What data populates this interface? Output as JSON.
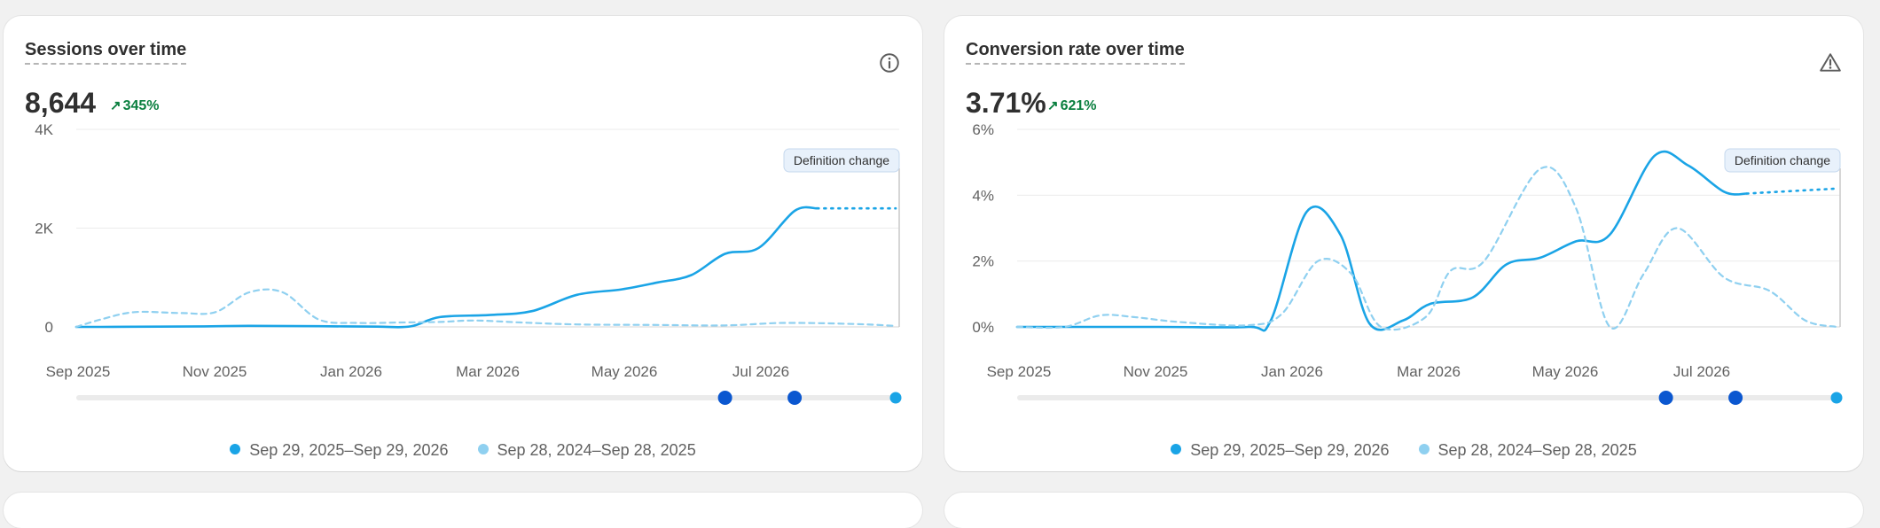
{
  "colors": {
    "current": "#1aa4e6",
    "previous": "#8fd0f0",
    "handle": "#0b57d0",
    "positive": "#0a7f3f"
  },
  "cards": [
    {
      "id": "sessions",
      "title": "Sessions over time",
      "value": "8,644",
      "change": "345%",
      "change_icon": "arrow-up-right-icon",
      "corner_icon": "info-icon",
      "badge": "Definition change",
      "legend": [
        "Sep 29, 2025–Sep 29, 2026",
        "Sep 28, 2024–Sep 28, 2025"
      ],
      "chart_data": {
        "type": "line",
        "title": "Sessions over time",
        "x_ticks": [
          "Sep 2025",
          "Nov 2025",
          "Jan 2026",
          "Mar 2026",
          "May 2026",
          "Jul 2026"
        ],
        "y_ticks": [
          "0",
          "2K",
          "4K"
        ],
        "ylim": [
          0,
          4000
        ],
        "grid": true,
        "series": [
          {
            "name": "Sep 29, 2025–Sep 29, 2026",
            "points": [
              [
                "2025-09-29",
                0
              ],
              [
                "2025-10-10",
                0
              ],
              [
                "2025-11-05",
                5
              ],
              [
                "2025-11-25",
                10
              ],
              [
                "2025-12-10",
                20
              ],
              [
                "2025-12-25",
                20
              ],
              [
                "2026-01-15",
                15
              ],
              [
                "2026-02-10",
                5
              ],
              [
                "2026-02-25",
                10
              ],
              [
                "2026-03-10",
                200
              ],
              [
                "2026-04-01",
                240
              ],
              [
                "2026-04-20",
                320
              ],
              [
                "2026-05-10",
                650
              ],
              [
                "2026-05-30",
                760
              ],
              [
                "2026-06-15",
                900
              ],
              [
                "2026-06-30",
                1050
              ],
              [
                "2026-07-15",
                1480
              ],
              [
                "2026-07-30",
                1600
              ],
              [
                "2026-08-15",
                2350
              ],
              [
                "2026-08-25",
                2400
              ]
            ],
            "projected": [
              [
                "2026-08-25",
                2400
              ],
              [
                "2026-09-29",
                2400
              ]
            ]
          },
          {
            "name": "Sep 28, 2024–Sep 28, 2025",
            "dashed": true,
            "points": [
              [
                "2025-09-29",
                0
              ],
              [
                "2025-10-10",
                150
              ],
              [
                "2025-10-25",
                300
              ],
              [
                "2025-11-15",
                280
              ],
              [
                "2025-11-30",
                300
              ],
              [
                "2025-12-15",
                700
              ],
              [
                "2025-12-30",
                700
              ],
              [
                "2026-01-15",
                150
              ],
              [
                "2026-02-01",
                80
              ],
              [
                "2026-02-20",
                90
              ],
              [
                "2026-03-10",
                100
              ],
              [
                "2026-03-25",
                130
              ],
              [
                "2026-04-15",
                90
              ],
              [
                "2026-05-10",
                50
              ],
              [
                "2026-06-15",
                40
              ],
              [
                "2026-07-15",
                30
              ],
              [
                "2026-08-10",
                80
              ],
              [
                "2026-09-10",
                60
              ],
              [
                "2026-09-29",
                20
              ]
            ]
          }
        ],
        "marker_dates": [
          "2026-07-15",
          "2026-08-15",
          "2026-09-29"
        ]
      }
    },
    {
      "id": "conversion",
      "title": "Conversion rate over time",
      "value": "3.71%",
      "change": "621%",
      "change_icon": "arrow-up-right-icon",
      "corner_icon": "alert-triangle-icon",
      "badge": "Definition change",
      "legend": [
        "Sep 29, 2025–Sep 29, 2026",
        "Sep 28, 2024–Sep 28, 2025"
      ],
      "chart_data": {
        "type": "line",
        "title": "Conversion rate over time",
        "x_ticks": [
          "Sep 2025",
          "Nov 2025",
          "Jan 2026",
          "Mar 2026",
          "May 2026",
          "Jul 2026"
        ],
        "y_ticks": [
          "0%",
          "2%",
          "4%",
          "6%"
        ],
        "ylim": [
          0,
          6
        ],
        "grid": true,
        "series": [
          {
            "name": "Sep 29, 2025–Sep 29, 2026",
            "points": [
              [
                "2025-09-29",
                0
              ],
              [
                "2025-12-01",
                0
              ],
              [
                "2026-01-10",
                0
              ],
              [
                "2026-01-20",
                0.2
              ],
              [
                "2026-02-05",
                3.5
              ],
              [
                "2026-02-20",
                2.8
              ],
              [
                "2026-03-05",
                0.1
              ],
              [
                "2026-03-20",
                0.2
              ],
              [
                "2026-04-01",
                0.7
              ],
              [
                "2026-04-20",
                0.9
              ],
              [
                "2026-05-05",
                1.9
              ],
              [
                "2026-05-20",
                2.1
              ],
              [
                "2026-06-05",
                2.6
              ],
              [
                "2026-06-20",
                2.8
              ],
              [
                "2026-07-10",
                5.2
              ],
              [
                "2026-07-25",
                4.9
              ],
              [
                "2026-08-10",
                4.1
              ],
              [
                "2026-08-20",
                4.05
              ]
            ],
            "projected": [
              [
                "2026-08-20",
                4.05
              ],
              [
                "2026-09-29",
                4.2
              ]
            ]
          },
          {
            "name": "Sep 28, 2024–Sep 28, 2025",
            "dashed": true,
            "points": [
              [
                "2025-09-29",
                0
              ],
              [
                "2025-10-20",
                0
              ],
              [
                "2025-11-05",
                0.35
              ],
              [
                "2025-11-20",
                0.3
              ],
              [
                "2025-12-10",
                0.15
              ],
              [
                "2026-01-10",
                0.05
              ],
              [
                "2026-01-25",
                0.4
              ],
              [
                "2026-02-10",
                2.0
              ],
              [
                "2026-02-25",
                1.6
              ],
              [
                "2026-03-10",
                0
              ],
              [
                "2026-03-30",
                0.3
              ],
              [
                "2026-04-10",
                1.7
              ],
              [
                "2026-04-25",
                2.0
              ],
              [
                "2026-05-20",
                4.8
              ],
              [
                "2026-06-05",
                3.6
              ],
              [
                "2026-06-20",
                0
              ],
              [
                "2026-07-05",
                1.6
              ],
              [
                "2026-07-20",
                3.0
              ],
              [
                "2026-08-10",
                1.5
              ],
              [
                "2026-08-30",
                1.1
              ],
              [
                "2026-09-15",
                0.2
              ],
              [
                "2026-09-29",
                0
              ]
            ]
          }
        ],
        "marker_dates": [
          "2026-07-15",
          "2026-08-15",
          "2026-09-29"
        ]
      }
    }
  ]
}
